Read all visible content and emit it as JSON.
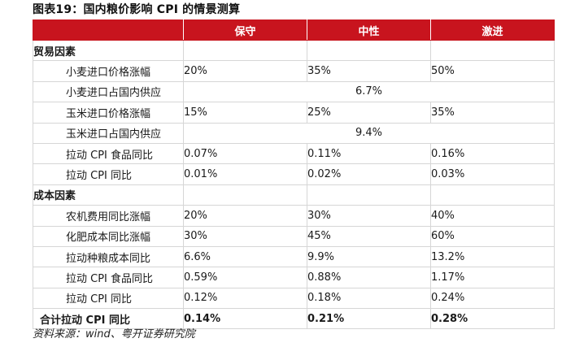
{
  "title": "图表19：国内粮价影响 CPI 的情景测算",
  "headers": [
    "",
    "保守",
    "中性",
    "激进"
  ],
  "sections": [
    {
      "name": "贸易因素",
      "rows": [
        {
          "label": "小麦进口价格涨幅",
          "values": [
            "20%",
            "35%",
            "50%"
          ]
        },
        {
          "label": "小麦进口占国内供应",
          "merged": "6.7%"
        },
        {
          "label": "玉米进口价格涨幅",
          "values": [
            "15%",
            "25%",
            "35%"
          ]
        },
        {
          "label": "玉米进口占国内供应",
          "merged": "9.4%"
        },
        {
          "label": "拉动 CPI 食品同比",
          "values": [
            "0.07%",
            "0.11%",
            "0.16%"
          ]
        },
        {
          "label": "拉动 CPI 同比",
          "values": [
            "0.01%",
            "0.02%",
            "0.03%"
          ]
        }
      ]
    },
    {
      "name": "成本因素",
      "rows": [
        {
          "label": "农机费用同比涨幅",
          "values": [
            "20%",
            "30%",
            "40%"
          ]
        },
        {
          "label": "化肥成本同比涨幅",
          "values": [
            "30%",
            "45%",
            "60%"
          ]
        },
        {
          "label": "拉动种粮成本同比",
          "values": [
            "6.6%",
            "9.9%",
            "13.2%"
          ]
        },
        {
          "label": "拉动 CPI 食品同比",
          "values": [
            "0.59%",
            "0.88%",
            "1.17%"
          ]
        },
        {
          "label": "拉动 CPI 同比",
          "values": [
            "0.12%",
            "0.18%",
            "0.24%"
          ]
        }
      ]
    }
  ],
  "total": {
    "label": "合计拉动 CPI 同比",
    "values": [
      "0.14%",
      "0.21%",
      "0.28%"
    ]
  },
  "source": "资料来源：wind、粤开证券研究院",
  "colors": {
    "header_bg": "#c8141e",
    "header_text": "#ffffff"
  }
}
